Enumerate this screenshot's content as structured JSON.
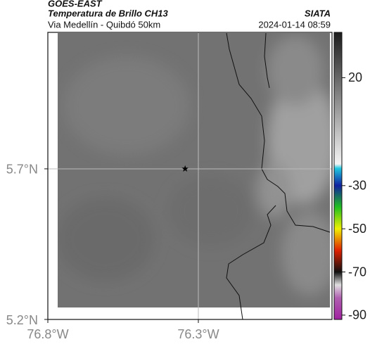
{
  "chart_data": {
    "type": "map",
    "title": "GOES-EAST",
    "subtitle": "Temperatura de Brillo CH13",
    "source": "SIATA",
    "route": "Via Medellín - Quibdó 50km",
    "datetime": "2024-01-14 08:59",
    "xlim": [
      -76.8,
      -75.856
    ],
    "ylim": [
      5.2,
      6.153
    ],
    "xticks": [
      {
        "value": -76.8,
        "label": "76.8°W"
      },
      {
        "value": -76.3,
        "label": "76.3°W"
      }
    ],
    "yticks": [
      {
        "value": 5.2,
        "label": "5.2°N"
      },
      {
        "value": 5.7,
        "label": "5.7°N"
      }
    ],
    "grid": true,
    "marker": {
      "lon": -76.344,
      "lat": 5.7
    },
    "colorbar": {
      "clim": [
        -92,
        41
      ],
      "ticks": [
        20,
        -30,
        -50,
        -70,
        -90
      ],
      "stops": [
        {
          "value": 41,
          "color": "#1c1c1c"
        },
        {
          "value": -20,
          "color": "#f4f4f4"
        },
        {
          "value": -22,
          "color": "#20c8e0"
        },
        {
          "value": -30,
          "color": "#1020a0"
        },
        {
          "value": -40,
          "color": "#20c020"
        },
        {
          "value": -50,
          "color": "#f0f000"
        },
        {
          "value": -60,
          "color": "#e02000"
        },
        {
          "value": -70,
          "color": "#101010"
        },
        {
          "value": -76,
          "color": "#e0e0e0"
        },
        {
          "value": -82,
          "color": "#b060b0"
        },
        {
          "value": -92,
          "color": "#a020a0"
        }
      ]
    }
  }
}
